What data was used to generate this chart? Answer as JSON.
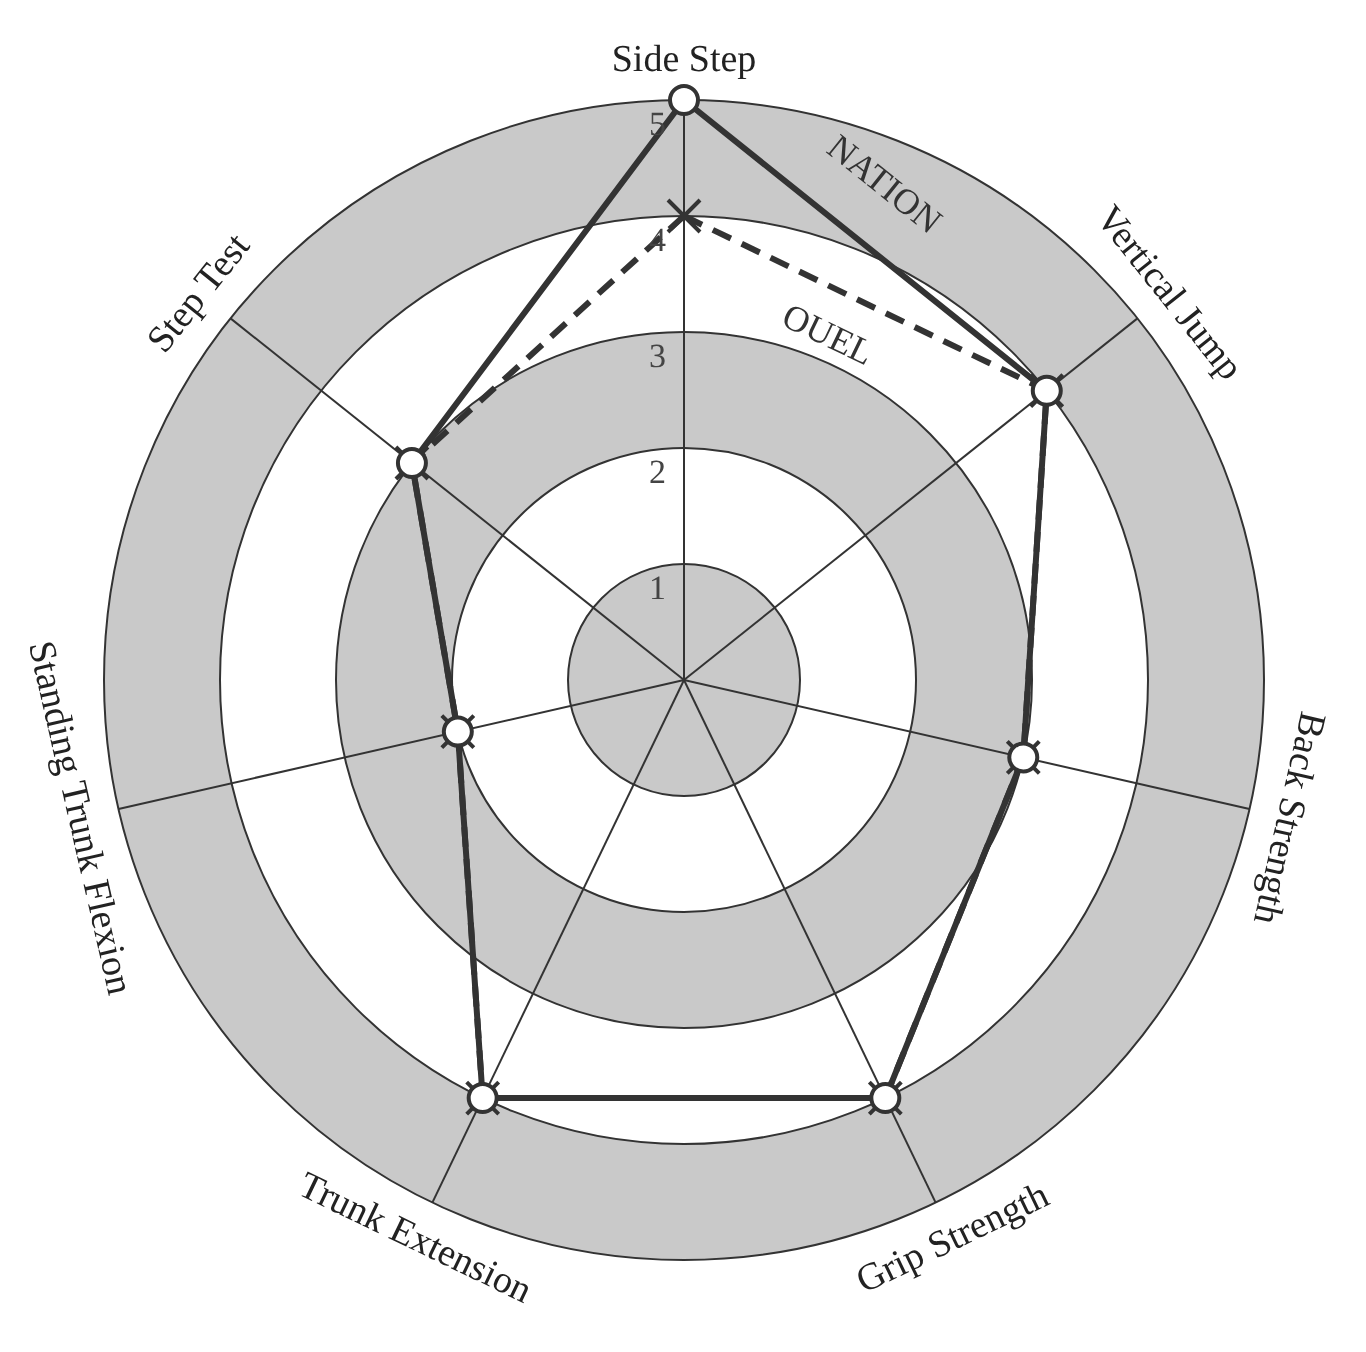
{
  "chart_data": {
    "type": "radar",
    "categories": [
      "Side Step",
      "Vertical Jump",
      "Back Strength",
      "Grip Strength",
      "Trunk Extension",
      "Standing Trunk Flexion",
      "Step Test"
    ],
    "series": [
      {
        "name": "NATION",
        "color": "#333333",
        "marker": "circle",
        "line_style": "solid",
        "values": [
          5,
          4,
          3,
          4,
          4,
          2,
          3
        ]
      },
      {
        "name": "OUEL",
        "color": "#333333",
        "marker": "cross",
        "line_style": "dashed",
        "values": [
          4,
          4,
          3,
          4,
          4,
          2,
          3
        ]
      }
    ],
    "ylim": [
      0,
      5
    ],
    "yticks": [
      1,
      2,
      3,
      4,
      5
    ],
    "grid": true
  }
}
